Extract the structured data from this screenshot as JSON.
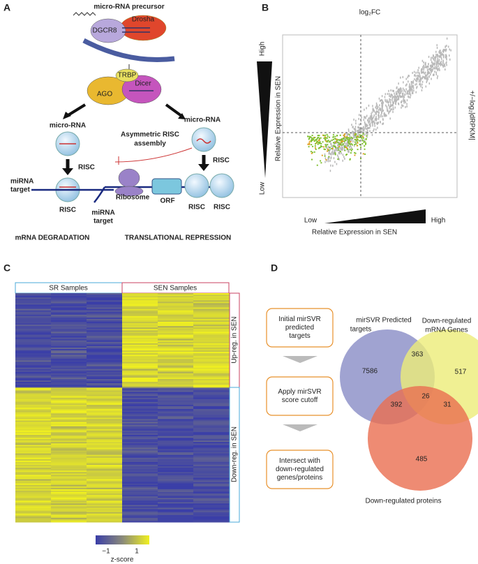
{
  "panel_a": {
    "label": "A",
    "precursor": "micro-RNA precursor",
    "drosha": "Drosha",
    "dgcr8": "DGCR8",
    "trbp": "TRBP",
    "ago": "AGO",
    "dicer": "Dicer",
    "left": {
      "microrna": "micro-RNA",
      "risc_step": "RISC",
      "target": [
        "miRNA",
        "target"
      ],
      "risc": "RISC",
      "outcome": "mRNA DEGRADATION"
    },
    "right": {
      "microrna": "micro-RNA",
      "assembly": [
        "Asymmetric RISC",
        "assembly"
      ],
      "risc_step": "RISC",
      "ribosome": "Ribosome",
      "orf": "ORF",
      "target": [
        "miRNA",
        "target"
      ],
      "risc_1": "RISC",
      "risc_2": "RISC",
      "outcome": "TRANSLATIONAL REPRESSION"
    }
  },
  "panel_b": {
    "label": "B",
    "top_label": "log₂FC",
    "right_label": "+/−log₂|dRPKM|",
    "y_high": "High",
    "y_low": "Low",
    "y_title": "Relative Expression in SEN",
    "x_low": "Low",
    "x_high": "High",
    "x_title": "Relative Expression in SEN"
  },
  "panel_c": {
    "label": "C",
    "group_1": "SR Samples",
    "group_2": "SEN Samples",
    "row_group_1": "Up-reg. in SEN",
    "row_group_2": "Down-reg. in SEN",
    "scale_min": "−1",
    "scale_max": "1",
    "scale_title": "z-score"
  },
  "panel_d": {
    "label": "D",
    "steps": [
      [
        "Initial mirSVR",
        "predicted",
        "targets"
      ],
      [
        "Apply mirSVR",
        "score cutoff"
      ],
      [
        "Intersect with",
        "down-regulated",
        "genes/proteins"
      ]
    ],
    "set_1": [
      "mirSVR Predicted",
      "targets"
    ],
    "set_2": [
      "Down-regulated",
      "mRNA Genes"
    ],
    "set_3": "Down-regulated proteins",
    "counts": {
      "only_1": "7586",
      "one_two": "363",
      "only_2": "517",
      "one_three": "392",
      "all": "26",
      "two_three": "31",
      "only_3": "485"
    }
  }
}
